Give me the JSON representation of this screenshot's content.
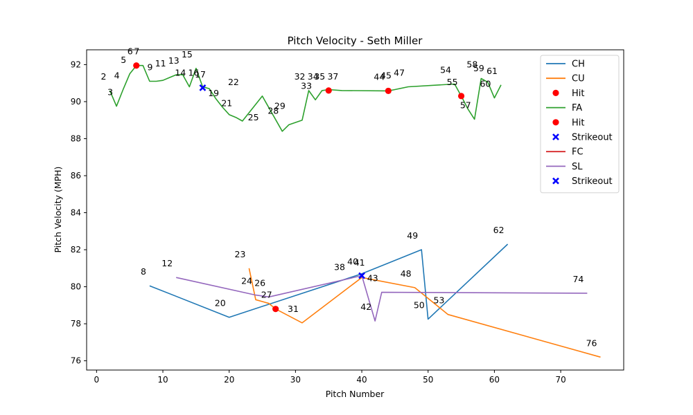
{
  "chart_data": {
    "type": "line",
    "title": "Pitch Velocity - Seth Miller",
    "xlabel": "Pitch Number",
    "ylabel": "Pitch Velocity (MPH)",
    "xlim": [
      -1.5,
      79.5
    ],
    "ylim": [
      75.5,
      92.8
    ],
    "xticks": [
      0,
      10,
      20,
      30,
      40,
      50,
      60,
      70
    ],
    "yticks": [
      76,
      78,
      80,
      82,
      84,
      86,
      88,
      90,
      92
    ],
    "grid": false,
    "legend_position": "top-right",
    "series": [
      {
        "name": "CH",
        "kind": "line",
        "color": "#1f77b4",
        "x": [
          8,
          20,
          40,
          49,
          50,
          62
        ],
        "y": [
          80.05,
          78.35,
          80.7,
          82.0,
          78.25,
          82.3
        ]
      },
      {
        "name": "CU",
        "kind": "line",
        "color": "#ff7f0e",
        "x": [
          23,
          24,
          26,
          27,
          31,
          40,
          48,
          53,
          76
        ],
        "y": [
          81.0,
          79.3,
          79.1,
          78.8,
          78.05,
          80.5,
          79.95,
          78.5,
          76.2
        ]
      },
      {
        "name": "Hit",
        "kind": "scatter",
        "marker": "circle",
        "color": "#ff0000",
        "x": [
          27
        ],
        "y": [
          78.8
        ]
      },
      {
        "name": "FA",
        "kind": "line",
        "color": "#2ca02c",
        "x": [
          2,
          3,
          4,
          5,
          6,
          7,
          8,
          9,
          10,
          11,
          12,
          13,
          14,
          15,
          16,
          17,
          18,
          19,
          20,
          21,
          22,
          25,
          28,
          29,
          31,
          32,
          33,
          34,
          35,
          37,
          44,
          45,
          47,
          54,
          55,
          56,
          57,
          58,
          59,
          60,
          61
        ],
        "y": [
          90.6,
          89.75,
          90.65,
          91.5,
          91.95,
          91.95,
          91.1,
          91.1,
          91.15,
          91.3,
          91.45,
          91.45,
          90.8,
          91.8,
          90.8,
          90.7,
          90.15,
          89.7,
          89.3,
          89.15,
          88.95,
          90.3,
          88.4,
          88.75,
          89.0,
          90.6,
          90.1,
          90.6,
          90.65,
          90.6,
          90.58,
          90.65,
          90.8,
          90.95,
          90.3,
          89.6,
          89.05,
          91.25,
          91.05,
          90.2,
          90.9
        ]
      },
      {
        "name": "Hit",
        "kind": "scatter",
        "marker": "circle",
        "color": "#ff0000",
        "x": [
          6,
          35,
          44,
          55
        ],
        "y": [
          91.95,
          90.6,
          90.58,
          90.3
        ]
      },
      {
        "name": "Strikeout",
        "kind": "scatter",
        "marker": "x",
        "color": "#0000ff",
        "x": [
          16
        ],
        "y": [
          90.75
        ]
      },
      {
        "name": "FC",
        "kind": "line",
        "color": "#d62728",
        "x": [],
        "y": []
      },
      {
        "name": "SL",
        "kind": "line",
        "color": "#9467bd",
        "x": [
          12,
          24,
          26,
          40,
          42,
          43,
          74
        ],
        "y": [
          80.5,
          79.55,
          79.45,
          80.6,
          78.15,
          79.7,
          79.65
        ]
      },
      {
        "name": "Strikeout",
        "kind": "scatter",
        "marker": "x",
        "color": "#0000ff",
        "x": [
          40
        ],
        "y": [
          80.6
        ]
      }
    ],
    "point_labels": [
      {
        "text": "2",
        "x": 2,
        "y": 90.6
      },
      {
        "text": "3",
        "x": 3,
        "y": 89.75
      },
      {
        "text": "4",
        "x": 4,
        "y": 90.65
      },
      {
        "text": "5",
        "x": 5,
        "y": 91.5
      },
      {
        "text": "6",
        "x": 6,
        "y": 91.95
      },
      {
        "text": "7",
        "x": 7,
        "y": 91.95
      },
      {
        "text": "8",
        "x": 8,
        "y": 80.05
      },
      {
        "text": "9",
        "x": 9,
        "y": 91.1
      },
      {
        "text": "11",
        "x": 11,
        "y": 91.3
      },
      {
        "text": "12",
        "x": 12,
        "y": 80.5
      },
      {
        "text": "13",
        "x": 13,
        "y": 91.45
      },
      {
        "text": "14",
        "x": 14,
        "y": 90.8
      },
      {
        "text": "15",
        "x": 15,
        "y": 91.8
      },
      {
        "text": "16",
        "x": 16,
        "y": 90.8
      },
      {
        "text": "17",
        "x": 17,
        "y": 90.7
      },
      {
        "text": "19",
        "x": 19,
        "y": 89.7
      },
      {
        "text": "20",
        "x": 20,
        "y": 78.35
      },
      {
        "text": "21",
        "x": 21,
        "y": 89.15
      },
      {
        "text": "22",
        "x": 22,
        "y": 90.3
      },
      {
        "text": "23",
        "x": 23,
        "y": 81.0
      },
      {
        "text": "24",
        "x": 24,
        "y": 79.55
      },
      {
        "text": "25",
        "x": 25,
        "y": 88.4
      },
      {
        "text": "26",
        "x": 26,
        "y": 79.45
      },
      {
        "text": "27",
        "x": 27,
        "y": 78.8
      },
      {
        "text": "28",
        "x": 28,
        "y": 88.75
      },
      {
        "text": "29",
        "x": 29,
        "y": 89.0
      },
      {
        "text": "31",
        "x": 31,
        "y": 78.05
      },
      {
        "text": "32",
        "x": 32,
        "y": 90.6
      },
      {
        "text": "33",
        "x": 33,
        "y": 90.1
      },
      {
        "text": "34",
        "x": 34,
        "y": 90.6
      },
      {
        "text": "35",
        "x": 35,
        "y": 90.6
      },
      {
        "text": "37",
        "x": 37,
        "y": 90.6
      },
      {
        "text": "38",
        "x": 38,
        "y": 80.3
      },
      {
        "text": "40",
        "x": 40,
        "y": 80.6
      },
      {
        "text": "41",
        "x": 41,
        "y": 80.55
      },
      {
        "text": "42",
        "x": 42,
        "y": 78.15
      },
      {
        "text": "43",
        "x": 43,
        "y": 79.7
      },
      {
        "text": "44",
        "x": 44,
        "y": 90.58
      },
      {
        "text": "45",
        "x": 45,
        "y": 90.65
      },
      {
        "text": "47",
        "x": 47,
        "y": 90.8
      },
      {
        "text": "48",
        "x": 48,
        "y": 79.95
      },
      {
        "text": "49",
        "x": 49,
        "y": 82.0
      },
      {
        "text": "50",
        "x": 50,
        "y": 78.25
      },
      {
        "text": "53",
        "x": 53,
        "y": 78.5
      },
      {
        "text": "54",
        "x": 54,
        "y": 90.95
      },
      {
        "text": "55",
        "x": 55,
        "y": 90.3
      },
      {
        "text": "57",
        "x": 57,
        "y": 89.05
      },
      {
        "text": "58",
        "x": 58,
        "y": 91.25
      },
      {
        "text": "59",
        "x": 59,
        "y": 91.05
      },
      {
        "text": "60",
        "x": 60,
        "y": 90.2
      },
      {
        "text": "61",
        "x": 61,
        "y": 90.9
      },
      {
        "text": "62",
        "x": 62,
        "y": 82.3
      },
      {
        "text": "74",
        "x": 74,
        "y": 79.65
      },
      {
        "text": "76",
        "x": 76,
        "y": 76.2
      }
    ]
  }
}
